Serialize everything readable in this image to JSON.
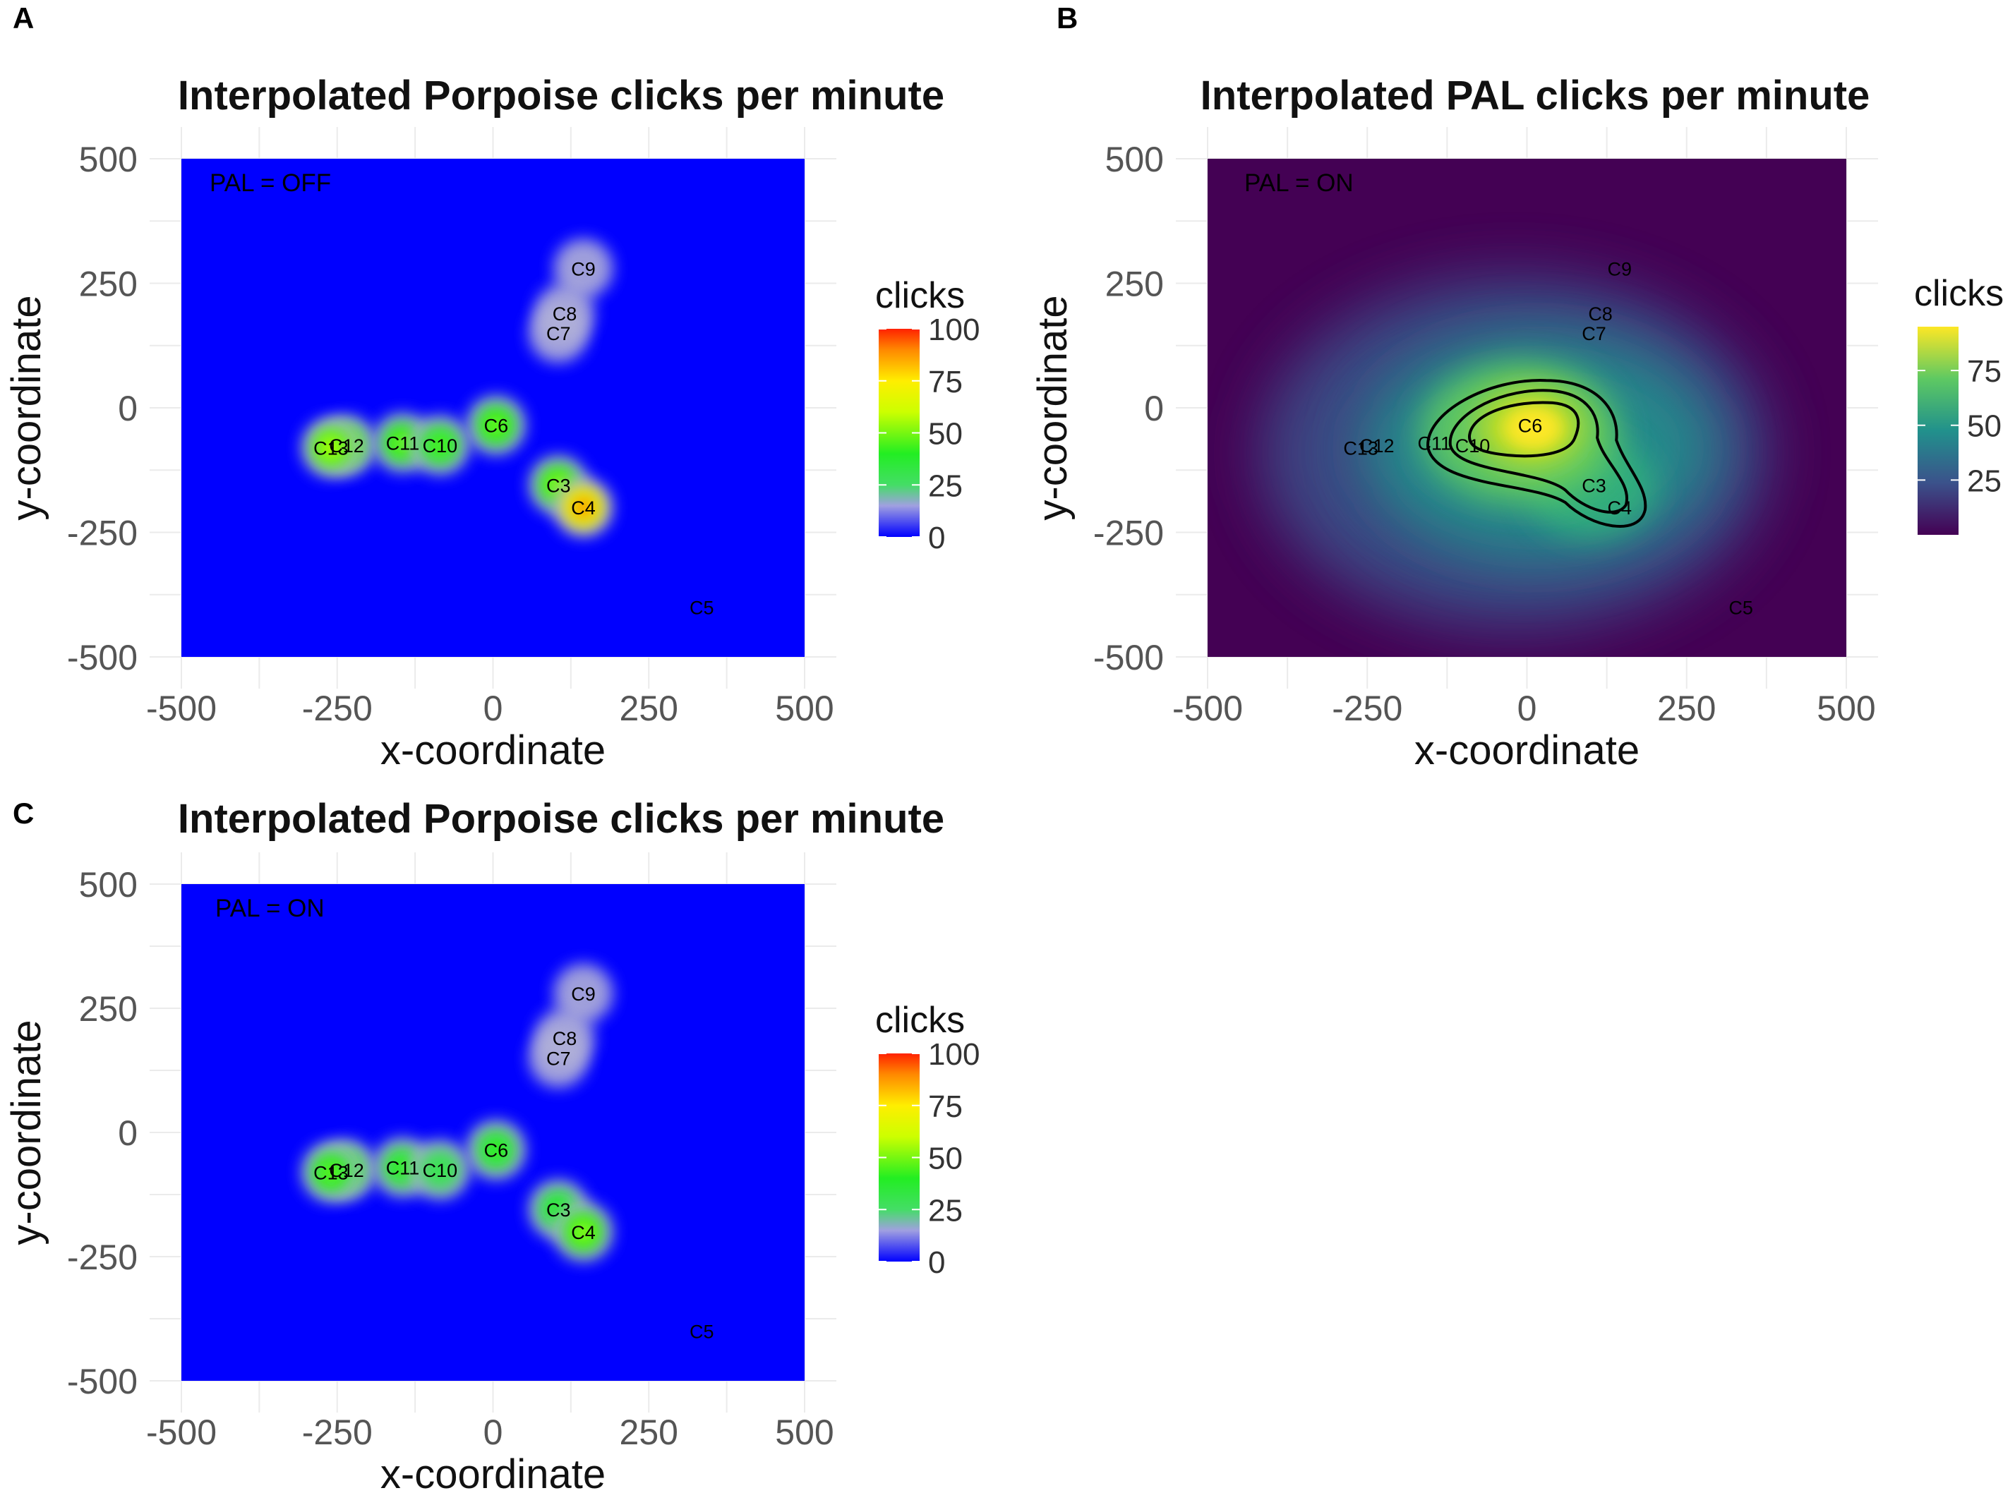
{
  "chart_data": [
    {
      "panel": "A",
      "type": "heatmap",
      "title": "Interpolated Porpoise clicks per minute",
      "xlabel": "x-coordinate",
      "ylabel": "y-coordinate",
      "xlim": [
        -500,
        500
      ],
      "ylim": [
        -500,
        500
      ],
      "x_ticks": [
        -500,
        -250,
        0,
        250,
        500
      ],
      "y_ticks": [
        500,
        250,
        0,
        -250,
        -500
      ],
      "annotation": "PAL = OFF",
      "colormap": "blue-green-yellow-red",
      "legend": {
        "title": "clicks",
        "ticks": [
          100,
          75,
          50,
          25,
          0
        ],
        "min": 0,
        "max": 100
      },
      "grid": true,
      "stations": [
        {
          "label": "C9",
          "x": 145,
          "y": 280,
          "value": 5
        },
        {
          "label": "C8",
          "x": 115,
          "y": 190,
          "value": 10
        },
        {
          "label": "C7",
          "x": 105,
          "y": 150,
          "value": 12
        },
        {
          "label": "C6",
          "x": 5,
          "y": -35,
          "value": 50
        },
        {
          "label": "C12",
          "x": -235,
          "y": -75,
          "value": 55
        },
        {
          "label": "C13",
          "x": -260,
          "y": -80,
          "value": 60
        },
        {
          "label": "C11",
          "x": -145,
          "y": -70,
          "value": 50
        },
        {
          "label": "C10",
          "x": -85,
          "y": -75,
          "value": 45
        },
        {
          "label": "C3",
          "x": 105,
          "y": -155,
          "value": 55
        },
        {
          "label": "C4",
          "x": 145,
          "y": -200,
          "value": 90
        },
        {
          "label": "C5",
          "x": 335,
          "y": -400,
          "value": 0
        }
      ]
    },
    {
      "panel": "B",
      "type": "heatmap",
      "title": "Interpolated PAL clicks per minute",
      "xlabel": "x-coordinate",
      "ylabel": "y-coordinate",
      "xlim": [
        -500,
        500
      ],
      "ylim": [
        -500,
        500
      ],
      "x_ticks": [
        -500,
        -250,
        0,
        250,
        500
      ],
      "y_ticks": [
        500,
        250,
        0,
        -250,
        -500
      ],
      "annotation": "PAL = ON",
      "colormap": "viridis",
      "legend": {
        "title": "clicks",
        "ticks": [
          75,
          50,
          25
        ],
        "min": 0,
        "max": 95
      },
      "grid": true,
      "contours": true,
      "stations": [
        {
          "label": "C9",
          "x": 145,
          "y": 280
        },
        {
          "label": "C8",
          "x": 115,
          "y": 190
        },
        {
          "label": "C7",
          "x": 105,
          "y": 150
        },
        {
          "label": "C6",
          "x": 5,
          "y": -35
        },
        {
          "label": "C12",
          "x": -235,
          "y": -75
        },
        {
          "label": "C13",
          "x": -260,
          "y": -80
        },
        {
          "label": "C11",
          "x": -145,
          "y": -70
        },
        {
          "label": "C10",
          "x": -85,
          "y": -75
        },
        {
          "label": "C3",
          "x": 105,
          "y": -155
        },
        {
          "label": "C4",
          "x": 145,
          "y": -200
        },
        {
          "label": "C5",
          "x": 335,
          "y": -400
        }
      ]
    },
    {
      "panel": "C",
      "type": "heatmap",
      "title": "Interpolated Porpoise clicks per minute",
      "xlabel": "x-coordinate",
      "ylabel": "y-coordinate",
      "xlim": [
        -500,
        500
      ],
      "ylim": [
        -500,
        500
      ],
      "x_ticks": [
        -500,
        -250,
        0,
        250,
        500
      ],
      "y_ticks": [
        500,
        250,
        0,
        -250,
        -500
      ],
      "annotation": "PAL = ON",
      "colormap": "blue-green-yellow-red",
      "legend": {
        "title": "clicks",
        "ticks": [
          100,
          75,
          50,
          25,
          0
        ],
        "min": 0,
        "max": 100
      },
      "grid": true,
      "stations": [
        {
          "label": "C9",
          "x": 145,
          "y": 280,
          "value": 5
        },
        {
          "label": "C8",
          "x": 115,
          "y": 190,
          "value": 10
        },
        {
          "label": "C7",
          "x": 105,
          "y": 150,
          "value": 12
        },
        {
          "label": "C6",
          "x": 5,
          "y": -35,
          "value": 42
        },
        {
          "label": "C12",
          "x": -235,
          "y": -75,
          "value": 45
        },
        {
          "label": "C13",
          "x": -260,
          "y": -80,
          "value": 48
        },
        {
          "label": "C11",
          "x": -145,
          "y": -70,
          "value": 42
        },
        {
          "label": "C10",
          "x": -85,
          "y": -75,
          "value": 38
        },
        {
          "label": "C3",
          "x": 105,
          "y": -155,
          "value": 40
        },
        {
          "label": "C4",
          "x": 145,
          "y": -200,
          "value": 55
        },
        {
          "label": "C5",
          "x": 335,
          "y": -400,
          "value": 0
        }
      ]
    }
  ]
}
